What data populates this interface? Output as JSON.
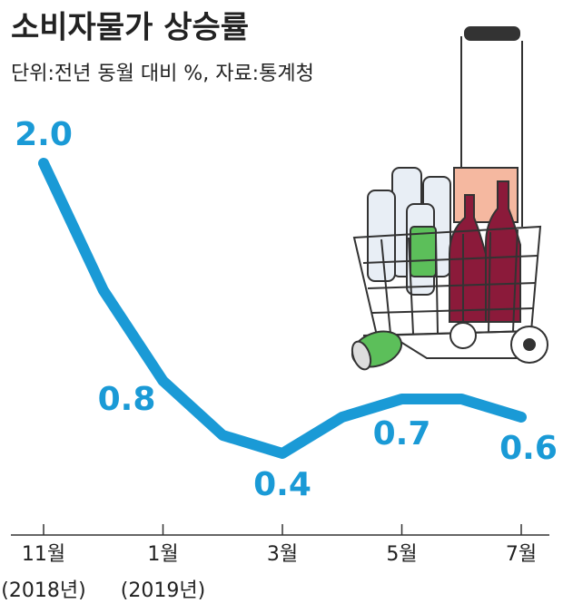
{
  "chart_data": {
    "type": "line",
    "title": "소비자물가 상승률",
    "subtitle": "단위:전년 동월 대비 %, 자료:통계청",
    "categories": [
      "11월",
      null,
      "1월",
      null,
      "3월",
      null,
      "5월",
      null,
      "7월"
    ],
    "x_sublabels": [
      "(2018년)",
      null,
      "(2019년)",
      null,
      null,
      null,
      null,
      null,
      null
    ],
    "values": [
      2.0,
      1.3,
      0.8,
      0.5,
      0.4,
      0.6,
      0.7,
      0.7,
      0.6
    ],
    "value_labels": [
      "2.0",
      null,
      "0.8",
      null,
      "0.4",
      null,
      "0.7",
      null,
      "0.6"
    ],
    "color": "#1a9ad6",
    "ylim": [
      0,
      2.0
    ],
    "grid": false
  }
}
